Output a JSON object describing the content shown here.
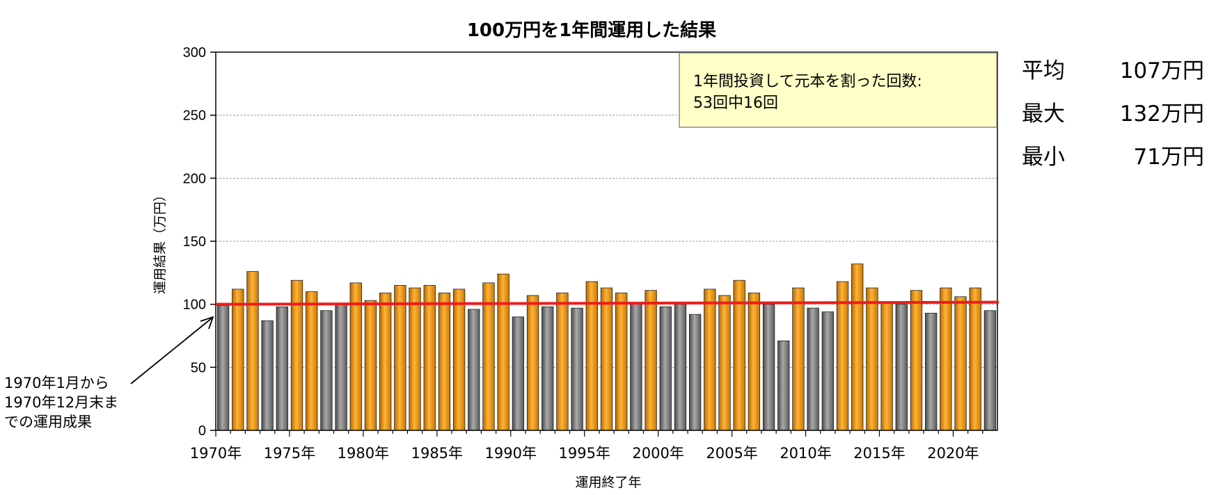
{
  "chart_data": {
    "type": "bar",
    "title": "100万円を1年間運用した結果",
    "xlabel": "運用終了年",
    "ylabel": "運用結果（万円）",
    "ylim": [
      0,
      300
    ],
    "yticks": [
      0,
      50,
      100,
      150,
      200,
      250,
      300
    ],
    "grid": true,
    "x_tick_labels": [
      "1970年",
      "1975年",
      "1980年",
      "1985年",
      "1990年",
      "1995年",
      "2000年",
      "2005年",
      "2010年",
      "2015年",
      "2020年"
    ],
    "x": [
      1970,
      1971,
      1972,
      1973,
      1974,
      1975,
      1976,
      1977,
      1978,
      1979,
      1980,
      1981,
      1982,
      1983,
      1984,
      1985,
      1986,
      1987,
      1988,
      1989,
      1990,
      1991,
      1992,
      1993,
      1994,
      1995,
      1996,
      1997,
      1998,
      1999,
      2000,
      2001,
      2002,
      2003,
      2004,
      2005,
      2006,
      2007,
      2008,
      2009,
      2010,
      2011,
      2012,
      2013,
      2014,
      2015,
      2016,
      2017,
      2018,
      2019,
      2020,
      2021,
      2022
    ],
    "values": [
      99,
      112,
      126,
      87,
      98,
      119,
      110,
      95,
      100,
      117,
      103,
      109,
      115,
      113,
      115,
      109,
      112,
      96,
      117,
      124,
      90,
      107,
      98,
      109,
      97,
      118,
      113,
      109,
      100,
      111,
      98,
      100,
      92,
      112,
      107,
      119,
      109,
      100,
      71,
      113,
      97,
      94,
      118,
      132,
      113,
      102,
      100,
      111,
      93,
      113,
      106,
      113,
      95
    ],
    "reference_line": {
      "value": 100,
      "color": "#ee1c1c"
    },
    "colors": {
      "above": "#f09a10",
      "below": "#8c8c8c"
    },
    "stats": [
      {
        "label": "平均",
        "value": "107万円"
      },
      {
        "label": "最大",
        "value": "132万円"
      },
      {
        "label": "最小",
        "value": "71万円"
      }
    ],
    "note": {
      "line1": "1年間投資して元本を割った回数:",
      "line2": "53回中16回"
    },
    "annotation": {
      "lines": [
        "1970年1月から",
        "1970年12月末ま",
        "での運用成果"
      ]
    }
  }
}
